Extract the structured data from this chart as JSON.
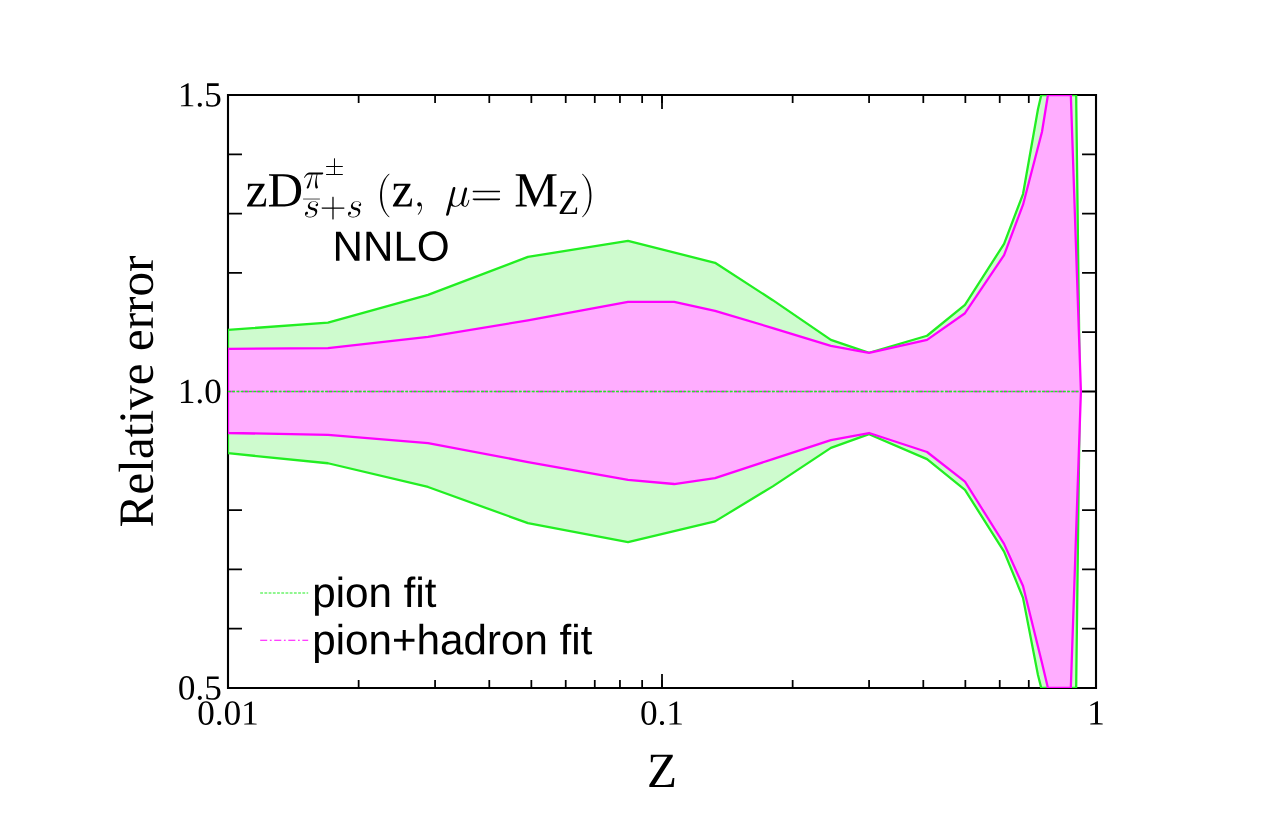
{
  "chart_data": {
    "type": "line",
    "xlabel": "Z",
    "ylabel": "Relative error",
    "annotations": [
      "\\mathrm{zD}^{\\pi^{\\pm}}_{\\overline{s}+s}\\ (\\mathrm{z},\\ \\mu\\mathrm{=M}_{\\mathrm{Z}})",
      "NNLO"
    ],
    "log": "x",
    "xlim": [
      0.01,
      1
    ],
    "xticks": [
      0.01,
      0.1,
      1
    ],
    "ylim": [
      0.5,
      1.5
    ],
    "yticks": [
      0.5,
      {
        "value": 0.6,
        "label": null
      },
      {
        "value": 0.7,
        "label": null
      },
      {
        "value": 0.8,
        "label": null
      },
      {
        "value": 0.9,
        "label": null
      },
      {
        "value": 1.0,
        "label": "1.0"
      },
      {
        "value": 1.1,
        "label": null
      },
      {
        "value": 1.2,
        "label": null
      },
      {
        "value": 1.3,
        "label": null
      },
      {
        "value": 1.4,
        "label": null
      },
      1.5
    ],
    "grid": false,
    "legend": "bottom left",
    "marker": "none",
    "series": [
      {
        "name": "pion fit",
        "color": "#22ee22",
        "line_style": "dashed",
        "x": [
          0.01,
          0.017,
          0.0289,
          0.0491,
          0.0835,
          0.1325,
          0.18,
          0.245,
          0.3,
          0.408,
          0.499,
          0.614,
          0.679,
          0.735,
          0.748,
          0.9,
          0.918
        ],
        "values": [
          1,
          1,
          1,
          1,
          1,
          1,
          1,
          1,
          1,
          1,
          1,
          1,
          1,
          1,
          1,
          1,
          1
        ],
        "upper": [
          1.104,
          1.116,
          1.163,
          1.227,
          1.254,
          1.217,
          1.154,
          1.087,
          1.065,
          1.094,
          1.146,
          1.249,
          1.333,
          1.476,
          1.5,
          1.5,
          1.0
        ],
        "lower": [
          0.896,
          0.879,
          0.839,
          0.778,
          0.746,
          0.781,
          0.84,
          0.905,
          0.928,
          0.886,
          0.834,
          0.73,
          0.652,
          0.522,
          0.5,
          0.5,
          1.0
        ]
      },
      {
        "name": "pion+hadron fit",
        "color": "#ff00ff",
        "line_style": "dashdot",
        "x": [
          0.01,
          0.017,
          0.0289,
          0.0491,
          0.0835,
          0.1067,
          0.1325,
          0.18,
          0.245,
          0.3,
          0.408,
          0.499,
          0.614,
          0.679,
          0.751,
          0.775,
          0.875,
          0.923
        ],
        "values": [
          1,
          1,
          1,
          1,
          1,
          1,
          1,
          1,
          1,
          1,
          1,
          1,
          1,
          1,
          1,
          1,
          1,
          1
        ],
        "upper": [
          1.072,
          1.073,
          1.092,
          1.12,
          1.151,
          1.151,
          1.136,
          1.107,
          1.077,
          1.065,
          1.087,
          1.132,
          1.23,
          1.315,
          1.438,
          1.5,
          1.5,
          1.0
        ],
        "lower": [
          0.93,
          0.927,
          0.913,
          0.881,
          0.851,
          0.844,
          0.854,
          0.886,
          0.918,
          0.93,
          0.898,
          0.848,
          0.743,
          0.672,
          0.542,
          0.5,
          0.5,
          1.0
        ]
      }
    ]
  }
}
